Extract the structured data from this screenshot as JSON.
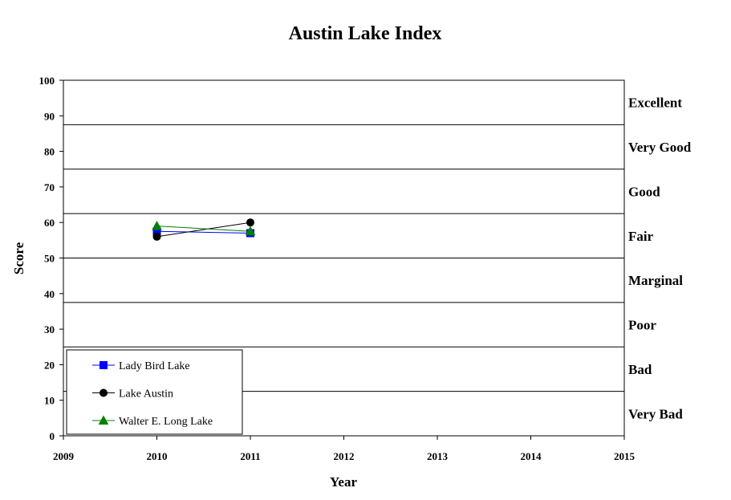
{
  "chart_data": {
    "type": "line",
    "title": "Austin Lake Index",
    "xlabel": "Year",
    "ylabel": "Score",
    "xlim": [
      2009,
      2015
    ],
    "ylim": [
      0,
      100
    ],
    "x_ticks": [
      2009,
      2010,
      2011,
      2012,
      2013,
      2014,
      2015
    ],
    "y_ticks": [
      0,
      10,
      20,
      30,
      40,
      50,
      60,
      70,
      80,
      90,
      100
    ],
    "grid": false,
    "legend_position": "bottom-left",
    "rating_bands": [
      {
        "label": "Excellent",
        "from": 87.5,
        "to": 100
      },
      {
        "label": "Very Good",
        "from": 75,
        "to": 87.5
      },
      {
        "label": "Good",
        "from": 62.5,
        "to": 75
      },
      {
        "label": "Fair",
        "from": 50,
        "to": 62.5
      },
      {
        "label": "Marginal",
        "from": 37.5,
        "to": 50
      },
      {
        "label": "Poor",
        "from": 25,
        "to": 37.5
      },
      {
        "label": "Bad",
        "from": 12.5,
        "to": 25
      },
      {
        "label": "Very Bad",
        "from": 0,
        "to": 12.5
      }
    ],
    "series": [
      {
        "name": "Lady Bird Lake",
        "x": [
          2010,
          2011
        ],
        "y": [
          57.5,
          57
        ],
        "color": "#0000ff",
        "marker": "square"
      },
      {
        "name": "Lake Austin",
        "x": [
          2010,
          2011
        ],
        "y": [
          56,
          60
        ],
        "color": "#000000",
        "marker": "circle"
      },
      {
        "name": "Walter E. Long Lake",
        "x": [
          2010,
          2011
        ],
        "y": [
          59,
          57.5
        ],
        "color": "#008000",
        "marker": "triangle"
      }
    ]
  }
}
